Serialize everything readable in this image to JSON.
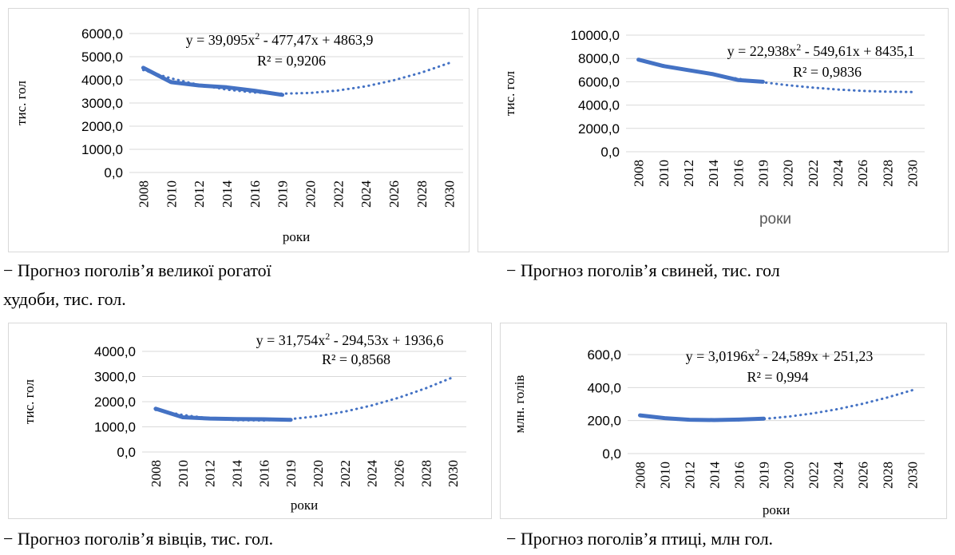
{
  "chart_data": [
    {
      "type": "line",
      "ylabel": "тис. гол",
      "xlabel": "роки",
      "categories": [
        "2008",
        "2010",
        "2012",
        "2014",
        "2016",
        "2019",
        "2020",
        "2022",
        "2024",
        "2026",
        "2028",
        "2030"
      ],
      "y_ticks": [
        "0,0",
        "1000,0",
        "2000,0",
        "3000,0",
        "4000,0",
        "5000,0",
        "6000,0"
      ],
      "ylim": [
        0,
        6000
      ],
      "series": [
        {
          "values": [
            4520,
            3900,
            3760,
            3680,
            3530,
            3350,
            null,
            null,
            null,
            null,
            null,
            null
          ],
          "color": "#4472C4",
          "style": "solid"
        },
        {
          "values": [
            4425,
            4065,
            3784,
            3580,
            3454,
            3405,
            3434,
            3540,
            3721,
            3979,
            4315,
            4729
          ],
          "color": "#4472C4",
          "style": "dotted"
        }
      ],
      "annotations": [
        "y = 39,095x",
        "2",
        " - 477,47x + 4863,9",
        "R² = 0,9206"
      ]
    },
    {
      "type": "line",
      "ylabel": "тис. гол",
      "xlabel": "роки",
      "categories": [
        "2008",
        "2010",
        "2012",
        "2014",
        "2016",
        "2019",
        "2020",
        "2022",
        "2024",
        "2026",
        "2028",
        "2030"
      ],
      "y_ticks": [
        "0,0",
        "2000,0",
        "4000,0",
        "6000,0",
        "8000,0",
        "10000,0"
      ],
      "ylim": [
        0,
        10000
      ],
      "series": [
        {
          "values": [
            7900,
            7350,
            7000,
            6650,
            6150,
            6000,
            null,
            null,
            null,
            null,
            null,
            null
          ],
          "color": "#4472C4",
          "style": "solid"
        },
        {
          "values": [
            7908,
            7427,
            6991,
            6601,
            6257,
            5958,
            5705,
            5498,
            5336,
            5221,
            5150,
            5126
          ],
          "color": "#4472C4",
          "style": "dotted"
        }
      ],
      "annotations": [
        "y = 22,938x",
        "2",
        " - 549,61x + 8435,1",
        "R² = 0,9836"
      ]
    },
    {
      "type": "line",
      "ylabel": "тис. гол",
      "xlabel": "роки",
      "categories": [
        "2008",
        "2010",
        "2012",
        "2014",
        "2016",
        "2019",
        "2020",
        "2022",
        "2024",
        "2026",
        "2028",
        "2030"
      ],
      "y_ticks": [
        "0,0",
        "1000,0",
        "2000,0",
        "3000,0",
        "4000,0"
      ],
      "ylim": [
        0,
        4000
      ],
      "series": [
        {
          "values": [
            1720,
            1380,
            1330,
            1310,
            1300,
            1280,
            null,
            null,
            null,
            null,
            null,
            null
          ],
          "color": "#4472C4",
          "style": "solid"
        },
        {
          "values": [
            1674,
            1474,
            1337,
            1264,
            1255,
            1309,
            1426,
            1607,
            1852,
            2160,
            2532,
            2967
          ],
          "color": "#4472C4",
          "style": "dotted"
        }
      ],
      "annotations": [
        "y = 31,754x",
        "2",
        " - 294,53x + 1936,6",
        "R² = 0,8568"
      ]
    },
    {
      "type": "line",
      "ylabel": "млн. голів",
      "xlabel": "роки",
      "categories": [
        "2008",
        "2010",
        "2012",
        "2014",
        "2016",
        "2019",
        "2020",
        "2022",
        "2024",
        "2026",
        "2028",
        "2030"
      ],
      "y_ticks": [
        "0,0",
        "200,0",
        "400,0",
        "600,0"
      ],
      "ylim": [
        0,
        600
      ],
      "series": [
        {
          "values": [
            232,
            215,
            205,
            203,
            206,
            212,
            null,
            null,
            null,
            null,
            null,
            null
          ],
          "color": "#4472C4",
          "style": "solid"
        },
        {
          "values": [
            230,
            214,
            204,
            200,
            202,
            210,
            224,
            244,
            270,
            302,
            340,
            384
          ],
          "color": "#4472C4",
          "style": "dotted"
        }
      ],
      "annotations": [
        "y = 3,0196x",
        "2",
        " - 24,589x + 251,23",
        "R² = 0,994"
      ]
    }
  ],
  "captions": [
    "− Прогноз поголів’я великої рогатої",
    "худоби, тис. гол.",
    "− Прогноз поголів’я свиней, тис. гол",
    "− Прогноз поголів’я вівців, тис. гол.",
    "− Прогноз поголів’я птиці, млн гол."
  ]
}
